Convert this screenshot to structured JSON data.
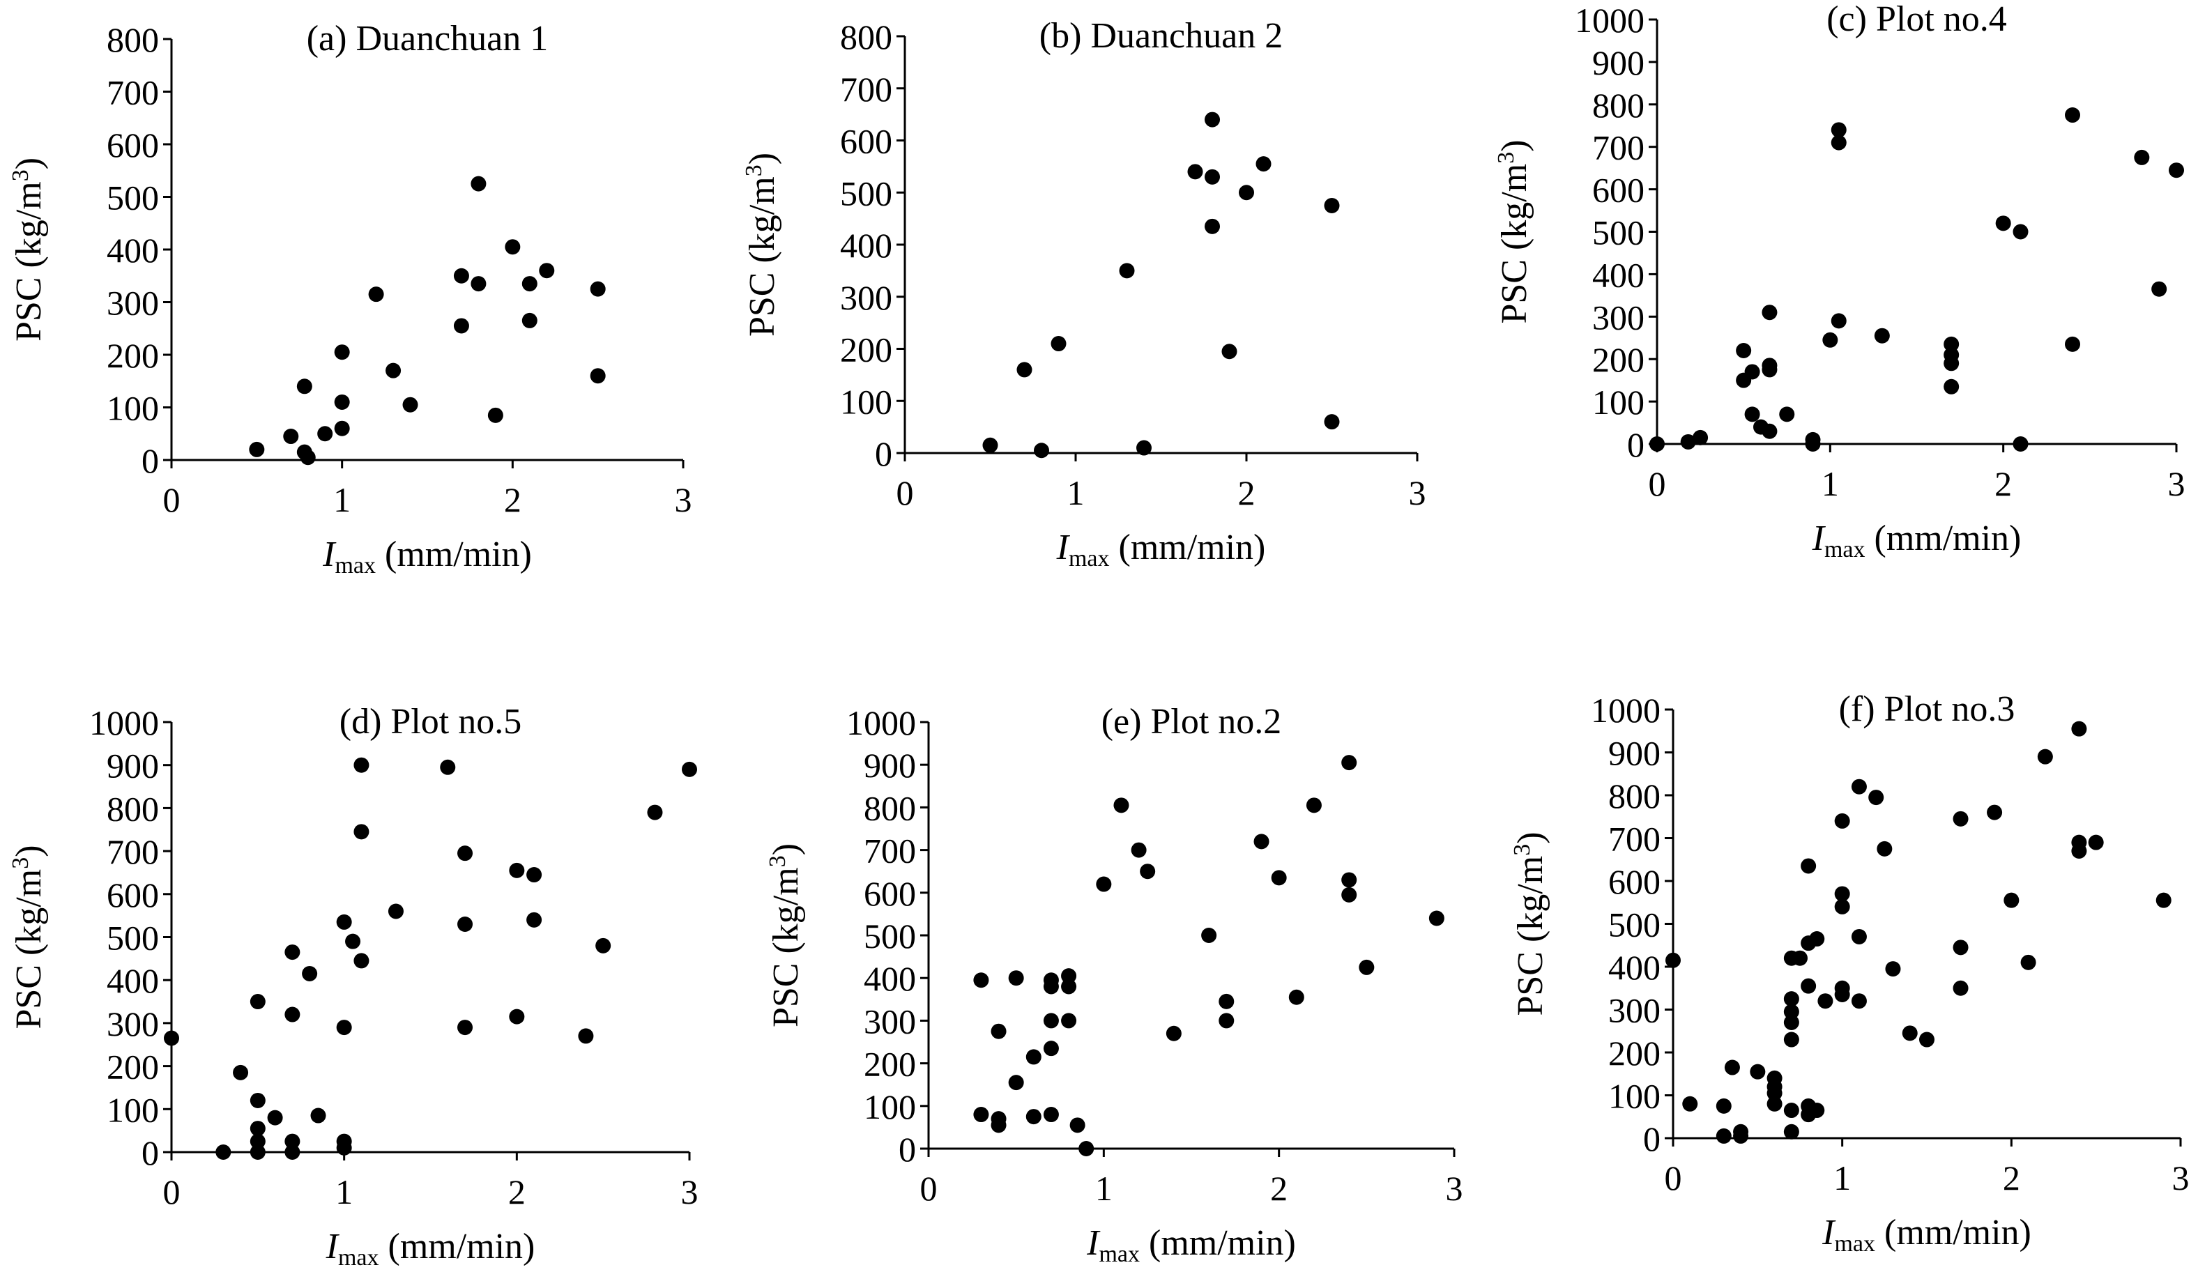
{
  "figure": {
    "colors": {
      "axis": "#000000",
      "marker": "#000000",
      "background": "#ffffff"
    },
    "axis_label_x_main": "I",
    "axis_label_x_sub": "max",
    "axis_label_x_unit": " (mm/min)",
    "axis_label_y_main": "PSC (kg/m",
    "axis_label_y_sup": "3",
    "axis_label_y_close": ")"
  },
  "chart_data": [
    {
      "type": "scatter",
      "title": "(a) Duanchuan 1",
      "xlabel": "Imax (mm/min)",
      "ylabel": "PSC (kg/m3)",
      "xlim": [
        0,
        3
      ],
      "ylim": [
        0,
        800
      ],
      "xticks": [
        0,
        1,
        2,
        3
      ],
      "yticks": [
        0,
        100,
        200,
        300,
        400,
        500,
        600,
        700,
        800
      ],
      "grid": false,
      "points": [
        [
          0.5,
          20
        ],
        [
          0.7,
          45
        ],
        [
          0.78,
          140
        ],
        [
          0.78,
          15
        ],
        [
          0.8,
          5
        ],
        [
          0.9,
          50
        ],
        [
          1.0,
          205
        ],
        [
          1.0,
          110
        ],
        [
          1.0,
          60
        ],
        [
          1.2,
          315
        ],
        [
          1.3,
          170
        ],
        [
          1.4,
          105
        ],
        [
          1.7,
          350
        ],
        [
          1.7,
          255
        ],
        [
          1.8,
          525
        ],
        [
          1.8,
          335
        ],
        [
          1.9,
          85
        ],
        [
          2.0,
          405
        ],
        [
          2.1,
          335
        ],
        [
          2.1,
          265
        ],
        [
          2.2,
          360
        ],
        [
          2.5,
          325
        ],
        [
          2.5,
          160
        ]
      ]
    },
    {
      "type": "scatter",
      "title": "(b) Duanchuan 2",
      "xlabel": "Imax (mm/min)",
      "ylabel": "PSC (kg/m3)",
      "xlim": [
        0,
        3
      ],
      "ylim": [
        0,
        800
      ],
      "xticks": [
        0,
        1,
        2,
        3
      ],
      "yticks": [
        0,
        100,
        200,
        300,
        400,
        500,
        600,
        700,
        800
      ],
      "grid": false,
      "points": [
        [
          0.5,
          15
        ],
        [
          0.7,
          160
        ],
        [
          0.8,
          5
        ],
        [
          0.9,
          210
        ],
        [
          1.3,
          350
        ],
        [
          1.4,
          10
        ],
        [
          1.7,
          540
        ],
        [
          1.8,
          640
        ],
        [
          1.8,
          530
        ],
        [
          1.8,
          435
        ],
        [
          1.9,
          195
        ],
        [
          2.0,
          500
        ],
        [
          2.1,
          555
        ],
        [
          2.5,
          475
        ],
        [
          2.5,
          60
        ]
      ]
    },
    {
      "type": "scatter",
      "title": "(c) Plot no.4",
      "xlabel": "Imax (mm/min)",
      "ylabel": "PSC (kg/m3)",
      "xlim": [
        0,
        3
      ],
      "ylim": [
        0,
        1000
      ],
      "xticks": [
        0,
        1,
        2,
        3
      ],
      "yticks": [
        0,
        100,
        200,
        300,
        400,
        500,
        600,
        700,
        800,
        900,
        1000
      ],
      "grid": false,
      "points": [
        [
          0.0,
          0
        ],
        [
          0.18,
          5
        ],
        [
          0.25,
          15
        ],
        [
          0.5,
          220
        ],
        [
          0.5,
          150
        ],
        [
          0.55,
          170
        ],
        [
          0.55,
          70
        ],
        [
          0.6,
          40
        ],
        [
          0.65,
          310
        ],
        [
          0.65,
          185
        ],
        [
          0.65,
          175
        ],
        [
          0.65,
          30
        ],
        [
          0.75,
          70
        ],
        [
          0.9,
          10
        ],
        [
          0.9,
          0
        ],
        [
          1.0,
          245
        ],
        [
          1.05,
          740
        ],
        [
          1.05,
          710
        ],
        [
          1.05,
          290
        ],
        [
          1.3,
          255
        ],
        [
          1.7,
          235
        ],
        [
          1.7,
          210
        ],
        [
          1.7,
          190
        ],
        [
          1.7,
          135
        ],
        [
          2.0,
          520
        ],
        [
          2.1,
          500
        ],
        [
          2.1,
          0
        ],
        [
          2.4,
          775
        ],
        [
          2.4,
          235
        ],
        [
          2.8,
          675
        ],
        [
          2.9,
          365
        ],
        [
          3.0,
          645
        ]
      ]
    },
    {
      "type": "scatter",
      "title": "(d) Plot no.5",
      "xlabel": "Imax (mm/min)",
      "ylabel": "PSC (kg/m3)",
      "xlim": [
        0,
        3
      ],
      "ylim": [
        0,
        1000
      ],
      "xticks": [
        0,
        1,
        2,
        3
      ],
      "yticks": [
        0,
        100,
        200,
        300,
        400,
        500,
        600,
        700,
        800,
        900,
        1000
      ],
      "grid": false,
      "points": [
        [
          0.0,
          265
        ],
        [
          0.3,
          0
        ],
        [
          0.4,
          185
        ],
        [
          0.5,
          350
        ],
        [
          0.5,
          120
        ],
        [
          0.5,
          55
        ],
        [
          0.5,
          25
        ],
        [
          0.5,
          0
        ],
        [
          0.6,
          80
        ],
        [
          0.7,
          465
        ],
        [
          0.7,
          320
        ],
        [
          0.7,
          25
        ],
        [
          0.7,
          0
        ],
        [
          0.8,
          415
        ],
        [
          0.85,
          85
        ],
        [
          1.0,
          535
        ],
        [
          1.0,
          290
        ],
        [
          1.0,
          25
        ],
        [
          1.0,
          10
        ],
        [
          1.05,
          490
        ],
        [
          1.1,
          900
        ],
        [
          1.1,
          745
        ],
        [
          1.1,
          445
        ],
        [
          1.3,
          560
        ],
        [
          1.6,
          895
        ],
        [
          1.7,
          695
        ],
        [
          1.7,
          530
        ],
        [
          1.7,
          290
        ],
        [
          2.0,
          655
        ],
        [
          2.0,
          315
        ],
        [
          2.1,
          645
        ],
        [
          2.1,
          540
        ],
        [
          2.4,
          270
        ],
        [
          2.5,
          480
        ],
        [
          2.8,
          790
        ],
        [
          3.0,
          890
        ]
      ]
    },
    {
      "type": "scatter",
      "title": "(e) Plot no.2",
      "xlabel": "Imax (mm/min)",
      "ylabel": "PSC (kg/m3)",
      "xlim": [
        0,
        3
      ],
      "ylim": [
        0,
        1000
      ],
      "xticks": [
        0,
        1,
        2,
        3
      ],
      "yticks": [
        0,
        100,
        200,
        300,
        400,
        500,
        600,
        700,
        800,
        900,
        1000
      ],
      "grid": false,
      "points": [
        [
          0.3,
          395
        ],
        [
          0.3,
          80
        ],
        [
          0.4,
          275
        ],
        [
          0.4,
          70
        ],
        [
          0.4,
          55
        ],
        [
          0.5,
          400
        ],
        [
          0.5,
          155
        ],
        [
          0.6,
          215
        ],
        [
          0.6,
          75
        ],
        [
          0.7,
          395
        ],
        [
          0.7,
          380
        ],
        [
          0.7,
          300
        ],
        [
          0.7,
          235
        ],
        [
          0.7,
          80
        ],
        [
          0.8,
          405
        ],
        [
          0.8,
          380
        ],
        [
          0.8,
          300
        ],
        [
          0.85,
          55
        ],
        [
          0.9,
          0
        ],
        [
          1.0,
          620
        ],
        [
          1.1,
          805
        ],
        [
          1.2,
          700
        ],
        [
          1.25,
          650
        ],
        [
          1.4,
          270
        ],
        [
          1.6,
          500
        ],
        [
          1.7,
          345
        ],
        [
          1.7,
          300
        ],
        [
          1.9,
          720
        ],
        [
          2.0,
          635
        ],
        [
          2.1,
          355
        ],
        [
          2.2,
          805
        ],
        [
          2.4,
          905
        ],
        [
          2.4,
          630
        ],
        [
          2.4,
          595
        ],
        [
          2.5,
          425
        ],
        [
          2.9,
          540
        ]
      ]
    },
    {
      "type": "scatter",
      "title": "(f) Plot no.3",
      "xlabel": "Imax (mm/min)",
      "ylabel": "PSC (kg/m3)",
      "xlim": [
        0,
        3
      ],
      "ylim": [
        0,
        1000
      ],
      "xticks": [
        0,
        1,
        2,
        3
      ],
      "yticks": [
        0,
        100,
        200,
        300,
        400,
        500,
        600,
        700,
        800,
        900,
        1000
      ],
      "grid": false,
      "points": [
        [
          0.0,
          415
        ],
        [
          0.1,
          80
        ],
        [
          0.3,
          75
        ],
        [
          0.3,
          5
        ],
        [
          0.35,
          165
        ],
        [
          0.4,
          15
        ],
        [
          0.4,
          5
        ],
        [
          0.5,
          155
        ],
        [
          0.6,
          140
        ],
        [
          0.6,
          120
        ],
        [
          0.6,
          105
        ],
        [
          0.6,
          80
        ],
        [
          0.7,
          420
        ],
        [
          0.7,
          325
        ],
        [
          0.7,
          295
        ],
        [
          0.7,
          270
        ],
        [
          0.7,
          230
        ],
        [
          0.7,
          65
        ],
        [
          0.7,
          15
        ],
        [
          0.75,
          420
        ],
        [
          0.8,
          635
        ],
        [
          0.8,
          455
        ],
        [
          0.8,
          355
        ],
        [
          0.8,
          75
        ],
        [
          0.8,
          55
        ],
        [
          0.85,
          465
        ],
        [
          0.85,
          65
        ],
        [
          0.9,
          320
        ],
        [
          1.0,
          740
        ],
        [
          1.0,
          570
        ],
        [
          1.0,
          540
        ],
        [
          1.0,
          350
        ],
        [
          1.0,
          335
        ],
        [
          1.1,
          820
        ],
        [
          1.1,
          470
        ],
        [
          1.1,
          320
        ],
        [
          1.2,
          795
        ],
        [
          1.25,
          675
        ],
        [
          1.3,
          395
        ],
        [
          1.4,
          245
        ],
        [
          1.5,
          230
        ],
        [
          1.7,
          745
        ],
        [
          1.7,
          445
        ],
        [
          1.7,
          350
        ],
        [
          1.9,
          760
        ],
        [
          2.0,
          555
        ],
        [
          2.1,
          410
        ],
        [
          2.2,
          890
        ],
        [
          2.4,
          955
        ],
        [
          2.4,
          690
        ],
        [
          2.4,
          670
        ],
        [
          2.5,
          690
        ],
        [
          2.9,
          555
        ]
      ]
    }
  ]
}
